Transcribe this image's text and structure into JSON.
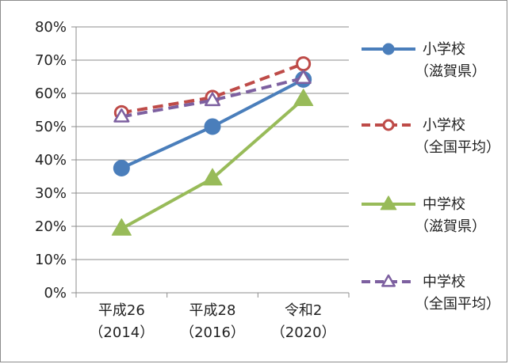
{
  "chart_data": {
    "type": "line",
    "title": "",
    "xlabel": "",
    "ylabel": "",
    "ylim": [
      0,
      80
    ],
    "ytick_step": 10,
    "ytick_format": "percent",
    "grid": true,
    "legend_position": "right",
    "categories": [
      {
        "line1": "平成26",
        "line2": "（2014）"
      },
      {
        "line1": "平成28",
        "line2": "（2016）"
      },
      {
        "line1": "令和2",
        "line2": "（2020）"
      }
    ],
    "series": [
      {
        "name_line1": "小学校",
        "name_line2": "（滋賀県）",
        "values": [
          37.5,
          50.0,
          64.2
        ],
        "color": "#4a7ebb",
        "dash": "solid",
        "marker": "circle",
        "filled": true
      },
      {
        "name_line1": "小学校",
        "name_line2": "（全国平均）",
        "values": [
          54.2,
          58.8,
          68.9
        ],
        "color": "#be4b48",
        "dash": "dashed",
        "marker": "circle",
        "filled": false
      },
      {
        "name_line1": "中学校",
        "name_line2": "（滋賀県）",
        "values": [
          19.3,
          34.4,
          58.3
        ],
        "color": "#98bb59",
        "dash": "solid",
        "marker": "triangle",
        "filled": true
      },
      {
        "name_line1": "中学校",
        "name_line2": "（全国平均）",
        "values": [
          53.0,
          57.9,
          64.6
        ],
        "color": "#7d60a0",
        "dash": "dashed",
        "marker": "triangle",
        "filled": false
      }
    ]
  }
}
